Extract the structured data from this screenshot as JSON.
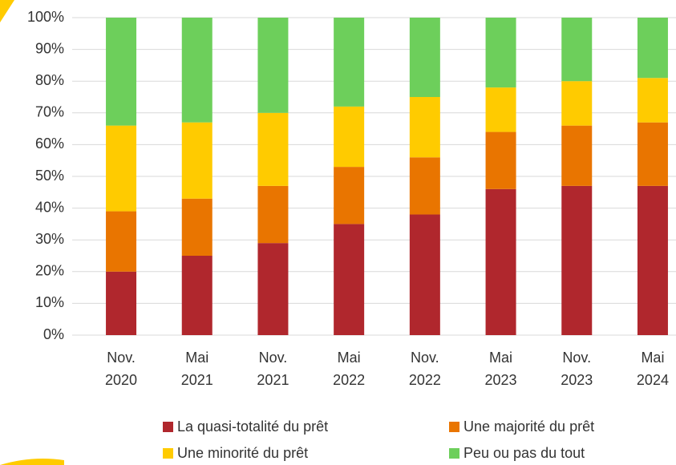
{
  "chart_data": {
    "type": "stacked_bar",
    "categories": [
      [
        "Nov.",
        "2020"
      ],
      [
        "Mai",
        "2021"
      ],
      [
        "Nov.",
        "2021"
      ],
      [
        "Mai",
        "2022"
      ],
      [
        "Nov.",
        "2022"
      ],
      [
        "Mai",
        "2023"
      ],
      [
        "Nov.",
        "2023"
      ],
      [
        "Mai",
        "2024"
      ]
    ],
    "series": [
      {
        "name": "La quasi-totalité du prêt",
        "color": "#b0272d",
        "values": [
          20,
          25,
          29,
          35,
          38,
          46,
          47,
          47
        ]
      },
      {
        "name": "Une majorité du prêt",
        "color": "#e97500",
        "values": [
          19,
          18,
          18,
          18,
          18,
          18,
          19,
          20
        ]
      },
      {
        "name": "Une minorité du prêt",
        "color": "#ffcb00",
        "values": [
          27,
          24,
          23,
          19,
          19,
          14,
          14,
          14
        ]
      },
      {
        "name": "Peu ou pas du tout",
        "color": "#6dcf5b",
        "values": [
          34,
          33,
          30,
          28,
          25,
          22,
          20,
          19
        ]
      }
    ],
    "ylim": [
      0,
      100
    ],
    "yticks": [
      {
        "value": 0,
        "label": "0%"
      },
      {
        "value": 10,
        "label": "10%"
      },
      {
        "value": 20,
        "label": "20%"
      },
      {
        "value": 30,
        "label": "30%"
      },
      {
        "value": 40,
        "label": "40%"
      },
      {
        "value": 50,
        "label": "50%"
      },
      {
        "value": 60,
        "label": "60%"
      },
      {
        "value": 70,
        "label": "70%"
      },
      {
        "value": 80,
        "label": "80%"
      },
      {
        "value": 90,
        "label": "90%"
      },
      {
        "value": 100,
        "label": "100%"
      }
    ],
    "grid": true,
    "legend": "bottom"
  }
}
